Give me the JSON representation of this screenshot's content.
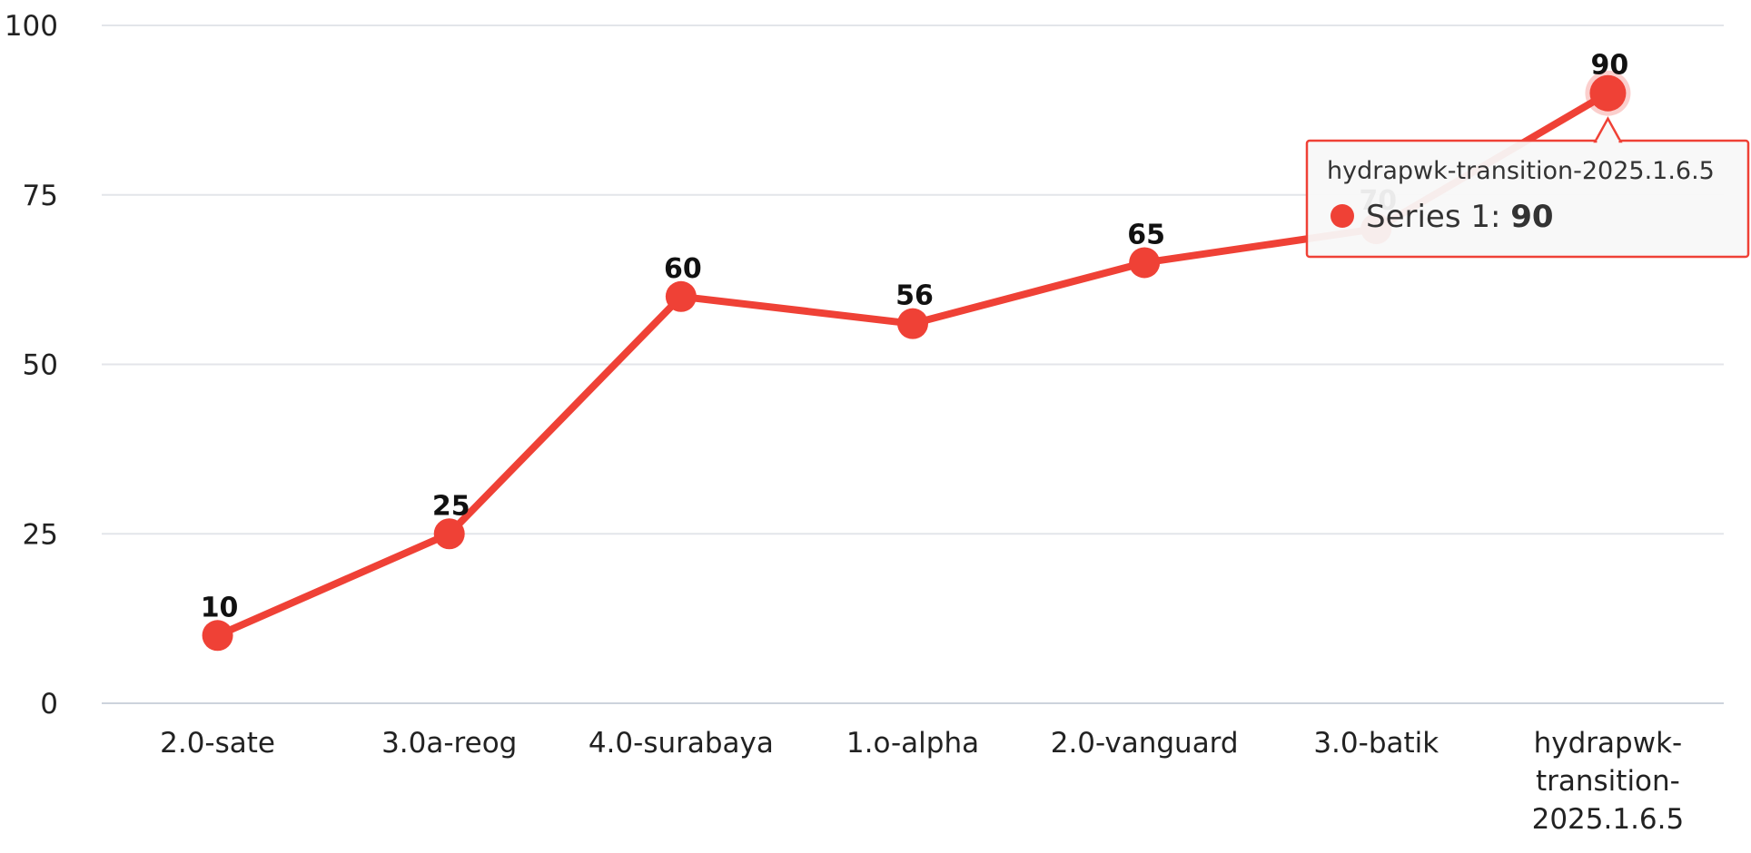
{
  "chart_data": {
    "type": "line",
    "title": "",
    "xlabel": "",
    "ylabel": "",
    "categories": [
      "2.0-sate",
      "3.0a-reog",
      "4.0-surabaya",
      "1.o-alpha",
      "2.0-vanguard",
      "3.0-batik",
      "hydrapwk-transition-2025.1.6.5"
    ],
    "category_display_lines": [
      [
        "2.0-sate"
      ],
      [
        "3.0a-reog"
      ],
      [
        "4.0-surabaya"
      ],
      [
        "1.o-alpha"
      ],
      [
        "2.0-vanguard"
      ],
      [
        "3.0-batik"
      ],
      [
        "hydrapwk-",
        "transition-",
        "2025.1.6.5"
      ]
    ],
    "series": [
      {
        "name": "Series 1",
        "values": [
          10,
          25,
          60,
          56,
          65,
          70,
          90
        ],
        "color": "#ef4136"
      }
    ],
    "ylim": [
      0,
      100
    ],
    "yticks": [
      "0",
      "25",
      "50",
      "75",
      "100"
    ],
    "grid": true,
    "legend": "none",
    "data_labels": true,
    "tooltip": {
      "category": "hydrapwk-transition-2025.1.6.5",
      "series_label": "Series 1: ",
      "value": "90",
      "active_index": 6
    }
  },
  "colors": {
    "series": "#ef4136",
    "grid": "#e3e5ea",
    "axis": "#cdd3dc",
    "tooltip_border": "#ef4136",
    "tooltip_bg": "#f8f8f8"
  }
}
